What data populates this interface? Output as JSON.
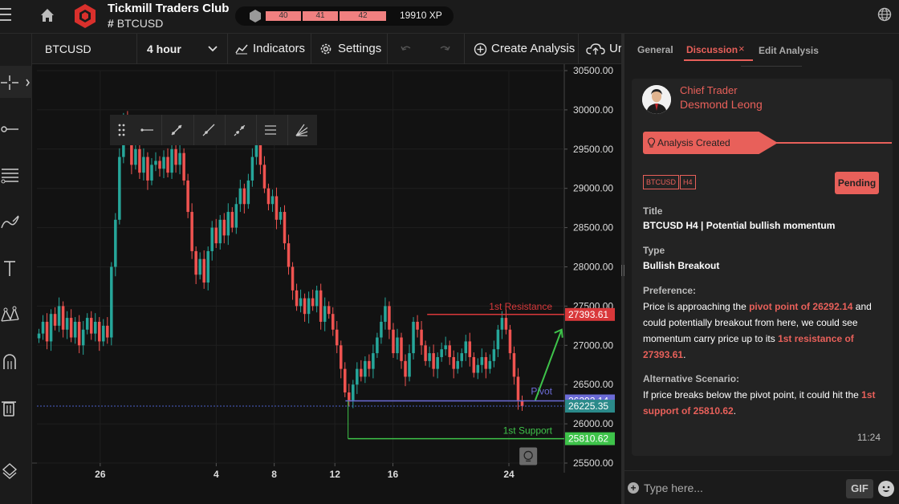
{
  "header": {
    "club_name": "Tickmill Traders Club",
    "symbol_prefix": "#",
    "symbol": "BTCUSD",
    "levels": [
      "40",
      "41",
      "42"
    ],
    "xp": "19910 XP"
  },
  "chart_toolbar": {
    "symbol": "BTCUSD",
    "timeframe": "4 hour",
    "indicators": "Indicators",
    "settings": "Settings",
    "create_analysis": "Create Analysis",
    "upload_truncated": "Ur"
  },
  "panel": {
    "tabs": [
      "General",
      "Discussion",
      "Edit Analysis"
    ],
    "active_tab": "Discussion",
    "author_role": "Chief Trader",
    "author_name": "Desmond Leong",
    "status_banner": "Analysis Created",
    "tags": [
      "BTCUSD",
      "H4"
    ],
    "status": "Pending",
    "title_label": "Title",
    "title_value": "BTCUSD H4 | Potential bullish momentum",
    "type_label": "Type",
    "type_value": "Bullish Breakout",
    "preference_label": "Preference:",
    "preference_1": "Price is approaching the ",
    "preference_hl1": "pivot point of 26292.14",
    "preference_2": " and could potentially breakout from here, we could see momentum carry price up to its ",
    "preference_hl2": "1st resistance of 27393.61",
    "preference_3": ".",
    "alt_label": "Alternative Scenario:",
    "alt_1": "If price breaks below the pivot point, it could hit the ",
    "alt_hl": "1st support of 25810.62",
    "alt_2": ".",
    "time": "11:24",
    "input_placeholder": "Type here...",
    "gif": "GIF"
  },
  "chart_data": {
    "type": "candlestick",
    "y_ticks": [
      "30500.00",
      "30000.00",
      "29500.00",
      "29000.00",
      "28500.00",
      "28000.00",
      "27500.00",
      "27000.00",
      "26500.00",
      "26000.00",
      "25500.00"
    ],
    "x_ticks": [
      "26",
      "4",
      "8",
      "12",
      "16",
      "24"
    ],
    "ylim": [
      25500,
      30500
    ],
    "current_price": "26225.35",
    "levels": [
      {
        "name": "1st Resistance",
        "value": 27393.61,
        "label": "27393.61",
        "color": "#d9383a"
      },
      {
        "name": "Pivot",
        "value": 26292.14,
        "label": "26292.14",
        "color": "#6b6bd6"
      },
      {
        "name": "1st Support",
        "value": 25810.62,
        "label": "25810.62",
        "color": "#3ec34a"
      }
    ],
    "closes": [
      27150,
      27300,
      27050,
      27400,
      27250,
      27500,
      27200,
      27350,
      27100,
      27300,
      27000,
      27200,
      27350,
      27150,
      27300,
      27050,
      27250,
      27100,
      28000,
      28600,
      29400,
      29900,
      29700,
      29300,
      29500,
      29200,
      29400,
      29100,
      29300,
      29350,
      29250,
      29400,
      29200,
      29500,
      29300,
      29450,
      29100,
      28700,
      28200,
      27900,
      28100,
      27800,
      28200,
      28500,
      28300,
      28600,
      28400,
      28700,
      28500,
      28800,
      29000,
      28800,
      29100,
      29400,
      29600,
      29300,
      29000,
      28800,
      28900,
      28600,
      28700,
      28300,
      28000,
      27700,
      27500,
      27600,
      27400,
      27600,
      27500,
      27700,
      27300,
      27500,
      27400,
      27200,
      27000,
      26700,
      26400,
      26300,
      26500,
      26700,
      26600,
      26800,
      26700,
      26900,
      27100,
      27300,
      27500,
      27200,
      26900,
      27100,
      26800,
      26600,
      26900,
      27300,
      27200,
      27000,
      26800,
      26900,
      26700,
      26850,
      26950,
      27000,
      26850,
      26700,
      26800,
      26900,
      27050,
      26850,
      26650,
      26750,
      26850,
      26700,
      26800,
      26950,
      27200,
      27350,
      27200,
      26900,
      26600,
      26300,
      26225
    ]
  }
}
